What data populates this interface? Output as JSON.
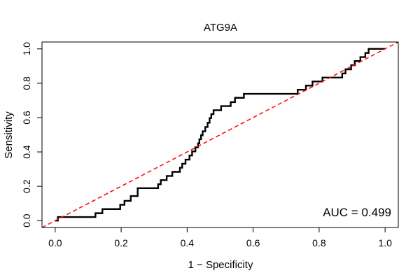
{
  "chart_data": {
    "type": "line",
    "title": "ATG9A",
    "xlabel": "1 − Specificity",
    "ylabel": "Sensitivity",
    "xlim": [
      -0.04,
      1.04
    ],
    "ylim": [
      -0.04,
      1.04
    ],
    "x_ticks": [
      {
        "value": 0.0,
        "label": "0.0"
      },
      {
        "value": 0.2,
        "label": "0.2"
      },
      {
        "value": 0.4,
        "label": "0.4"
      },
      {
        "value": 0.6,
        "label": "0.6"
      },
      {
        "value": 0.8,
        "label": "0.8"
      },
      {
        "value": 1.0,
        "label": "1.0"
      }
    ],
    "y_ticks": [
      {
        "value": 0.0,
        "label": "0.0"
      },
      {
        "value": 0.2,
        "label": "0.2"
      },
      {
        "value": 0.4,
        "label": "0.4"
      },
      {
        "value": 0.6,
        "label": "0.6"
      },
      {
        "value": 0.8,
        "label": "0.8"
      },
      {
        "value": 1.0,
        "label": "1.0"
      }
    ],
    "grid": false,
    "annotation": "AUC = 0.499",
    "series": [
      {
        "color": "#000000",
        "style": "solid",
        "x": [
          0.0,
          0.008,
          0.008,
          0.122,
          0.122,
          0.143,
          0.143,
          0.197,
          0.197,
          0.21,
          0.21,
          0.229,
          0.229,
          0.25,
          0.25,
          0.312,
          0.312,
          0.32,
          0.32,
          0.338,
          0.338,
          0.355,
          0.355,
          0.378,
          0.378,
          0.385,
          0.385,
          0.395,
          0.395,
          0.407,
          0.407,
          0.415,
          0.415,
          0.425,
          0.425,
          0.433,
          0.433,
          0.437,
          0.437,
          0.442,
          0.442,
          0.447,
          0.447,
          0.455,
          0.455,
          0.462,
          0.462,
          0.468,
          0.468,
          0.473,
          0.473,
          0.48,
          0.48,
          0.49,
          0.49,
          0.503,
          0.503,
          0.532,
          0.532,
          0.545,
          0.545,
          0.555,
          0.555,
          0.572,
          0.572,
          0.735,
          0.735,
          0.76,
          0.76,
          0.78,
          0.78,
          0.81,
          0.81,
          0.87,
          0.87,
          0.88,
          0.88,
          0.897,
          0.897,
          0.908,
          0.908,
          0.925,
          0.925,
          0.94,
          0.94,
          0.95,
          0.95,
          1.0
        ],
        "y": [
          0.0,
          0.0,
          0.021,
          0.021,
          0.043,
          0.043,
          0.067,
          0.067,
          0.092,
          0.092,
          0.115,
          0.115,
          0.143,
          0.143,
          0.189,
          0.189,
          0.212,
          0.212,
          0.236,
          0.236,
          0.26,
          0.26,
          0.284,
          0.284,
          0.308,
          0.308,
          0.331,
          0.331,
          0.355,
          0.355,
          0.379,
          0.379,
          0.403,
          0.403,
          0.427,
          0.427,
          0.45,
          0.45,
          0.474,
          0.474,
          0.497,
          0.497,
          0.52,
          0.52,
          0.545,
          0.545,
          0.57,
          0.57,
          0.597,
          0.597,
          0.62,
          0.62,
          0.643,
          0.643,
          0.643,
          0.643,
          0.667,
          0.667,
          0.69,
          0.69,
          0.715,
          0.715,
          0.715,
          0.715,
          0.738,
          0.738,
          0.762,
          0.762,
          0.786,
          0.786,
          0.81,
          0.81,
          0.833,
          0.833,
          0.857,
          0.857,
          0.881,
          0.881,
          0.905,
          0.905,
          0.929,
          0.929,
          0.952,
          0.952,
          0.976,
          0.976,
          1.0,
          1.0
        ]
      },
      {
        "color": "#ff0000",
        "style": "dashed",
        "x": [
          -0.04,
          1.04
        ],
        "y": [
          -0.04,
          1.04
        ]
      }
    ]
  }
}
